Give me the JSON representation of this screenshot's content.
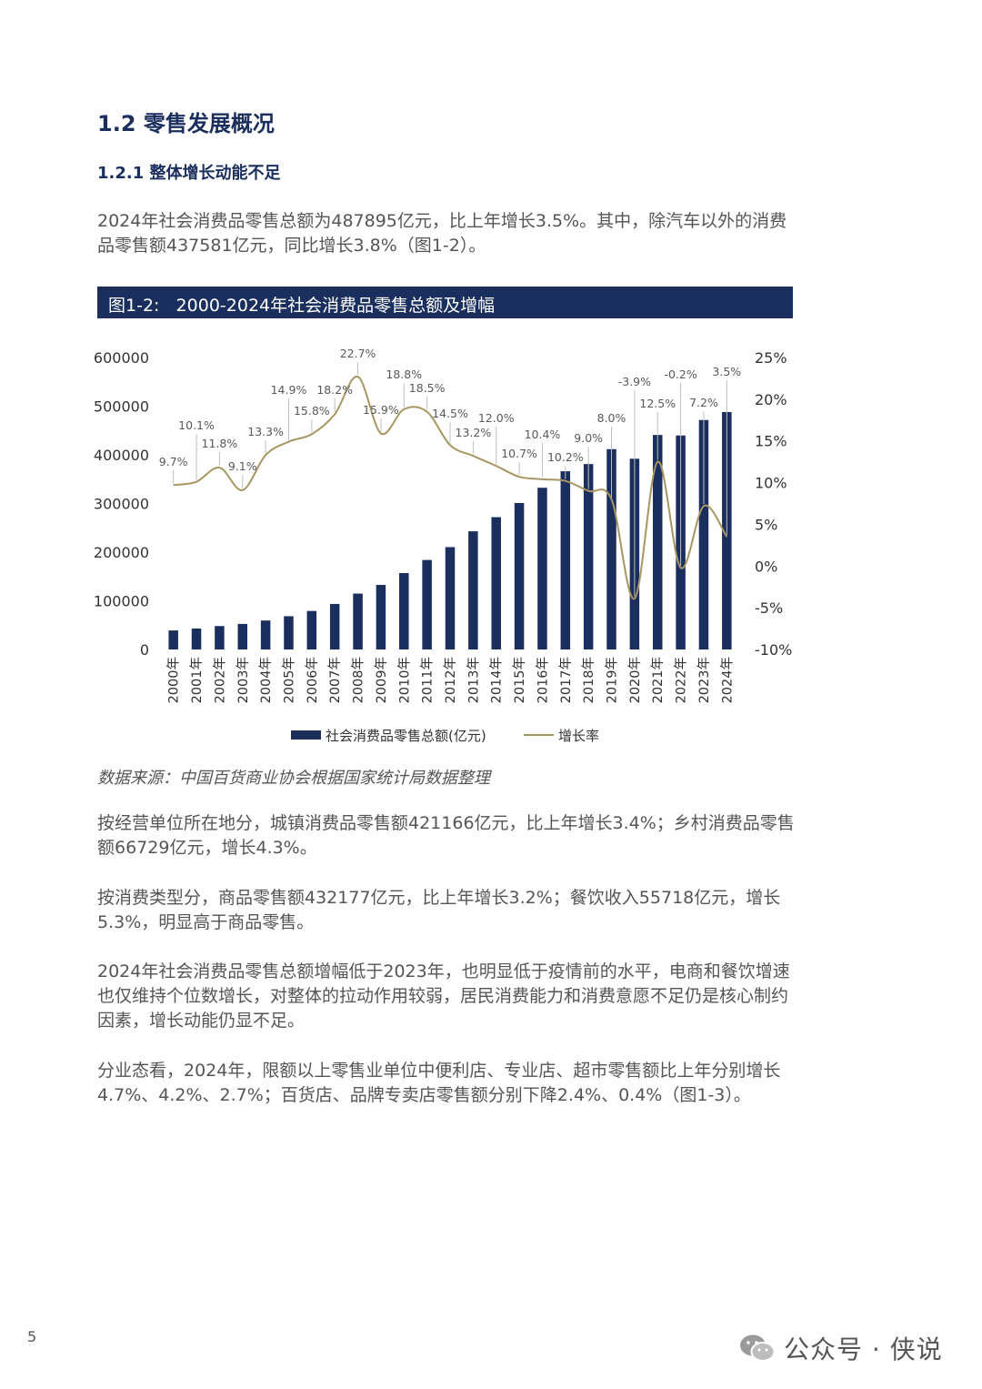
{
  "heading1": "1.2 零售发展概况",
  "heading2": "1.2.1 整体增长动能不足",
  "intro": "2024年社会消费品零售总额为487895亿元，比上年增长3.5%。其中，除汽车以外的消费品零售额437581亿元，同比增长3.8%（图1-2）。",
  "figure_title": "图1-2:   2000-2024年社会消费品零售总额及增幅",
  "chart_data": {
    "type": "bar+line",
    "categories": [
      "2000年",
      "2001年",
      "2002年",
      "2003年",
      "2004年",
      "2005年",
      "2006年",
      "2007年",
      "2008年",
      "2009年",
      "2010年",
      "2011年",
      "2012年",
      "2013年",
      "2014年",
      "2015年",
      "2016年",
      "2017年",
      "2018年",
      "2019年",
      "2020年",
      "2021年",
      "2022年",
      "2023年",
      "2024年"
    ],
    "series": [
      {
        "name": "社会消费品零售总额(亿元)",
        "type": "bar",
        "axis": "left",
        "values": [
          39106,
          43055,
          48136,
          52516,
          59501,
          68353,
          79145,
          93572,
          114830,
          132678,
          156998,
          183919,
          210307,
          242843,
          271896,
          300931,
          332316,
          366262,
          380987,
          411649,
          391981,
          440823,
          439733,
          471495,
          487895
        ]
      },
      {
        "name": "增长率",
        "type": "line",
        "axis": "right",
        "values": [
          9.7,
          10.1,
          11.8,
          9.1,
          13.3,
          14.9,
          15.8,
          18.2,
          22.7,
          15.9,
          18.8,
          18.5,
          14.5,
          13.2,
          12.0,
          10.7,
          10.4,
          10.2,
          9.0,
          8.0,
          -3.9,
          12.5,
          -0.2,
          7.2,
          3.5
        ],
        "labels": [
          "9.7%",
          "10.1%",
          "11.8%",
          "9.1%",
          "13.3%",
          "14.9%",
          "15.8%",
          "18.2%",
          "22.7%",
          "15.9%",
          "18.8%",
          "18.5%",
          "14.5%",
          "13.2%",
          "12.0%",
          "10.7%",
          "10.4%",
          "10.2%",
          "9.0%",
          "8.0%",
          "-3.9%",
          "12.5%",
          "-0.2%",
          "7.2%",
          "3.5%"
        ]
      }
    ],
    "y_left": {
      "ylim": [
        0,
        600000
      ],
      "ticks": [
        "0",
        "100000",
        "200000",
        "300000",
        "400000",
        "500000",
        "600000"
      ]
    },
    "y_right": {
      "ylim": [
        -10,
        25
      ],
      "ticks": [
        "-10%",
        "-5%",
        "0%",
        "5%",
        "10%",
        "15%",
        "20%",
        "25%"
      ]
    },
    "legend": {
      "placement": "bottom",
      "bar_label": "社会消费品零售总额(亿元)",
      "line_label": "增长率"
    },
    "colors": {
      "bar": "#1b2f5e",
      "line": "#a89662",
      "leader": "#bfbfbf",
      "label": "#595959"
    },
    "grid": false
  },
  "source": "数据来源：中国百货商业协会根据国家统计局数据整理",
  "paragraphs": [
    "按经营单位所在地分，城镇消费品零售额421166亿元，比上年增长3.4%；乡村消费品零售额66729亿元，增长4.3%。",
    "按消费类型分，商品零售额432177亿元，比上年增长3.2%；餐饮收入55718亿元，增长5.3%，明显高于商品零售。",
    "2024年社会消费品零售总额增幅低于2023年，也明显低于疫情前的水平，电商和餐饮增速也仅维持个位数增长，对整体的拉动作用较弱，居民消费能力和消费意愿不足仍是核心制约因素，增长动能仍显不足。",
    "分业态看，2024年，限额以上零售业单位中便利店、专业店、超市零售额比上年分别增长4.7%、4.2%、2.7%；百货店、品牌专卖店零售额分别下降2.4%、0.4%（图1-3）。"
  ],
  "page_number": "5",
  "watermark": {
    "icon": "wechat-icon",
    "text": "公众号 · 侠说"
  }
}
